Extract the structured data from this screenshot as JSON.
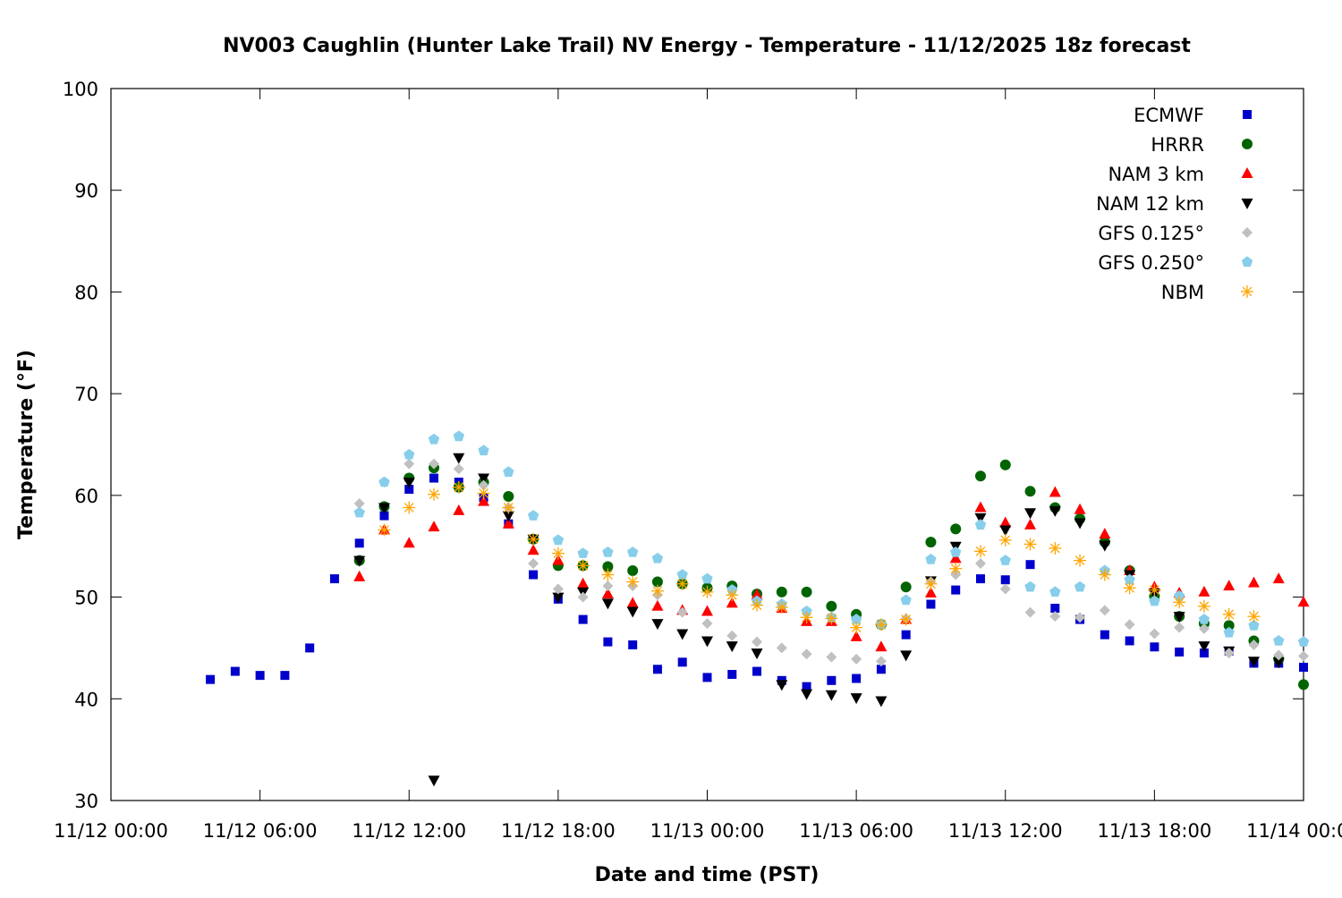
{
  "chart_data": {
    "type": "scatter",
    "title": "NV003 Caughlin (Hunter Lake Trail) NV Energy - Temperature - 11/12/2025 18z forecast",
    "xlabel": "Date and time (PST)",
    "ylabel": "Temperature (°F)",
    "xlim": [
      "11/12 00:00",
      "11/14 00:00"
    ],
    "ylim": [
      30,
      100
    ],
    "x_tick_labels": [
      "11/12 00:00",
      "11/12 06:00",
      "11/12 12:00",
      "11/12 18:00",
      "11/13 00:00",
      "11/13 06:00",
      "11/13 12:00",
      "11/13 18:00",
      "11/14 00:00"
    ],
    "y_tick_labels": [
      "30",
      "40",
      "50",
      "60",
      "70",
      "80",
      "90",
      "100"
    ],
    "grid": false,
    "legend_position": "top-right",
    "x": [
      "11/12 04:00",
      "11/12 05:00",
      "11/12 06:00",
      "11/12 07:00",
      "11/12 08:00",
      "11/12 09:00",
      "11/12 10:00",
      "11/12 11:00",
      "11/12 12:00",
      "11/12 13:00",
      "11/12 14:00",
      "11/12 15:00",
      "11/12 16:00",
      "11/12 17:00",
      "11/12 18:00",
      "11/12 19:00",
      "11/12 20:00",
      "11/12 21:00",
      "11/12 22:00",
      "11/12 23:00",
      "11/13 00:00",
      "11/13 01:00",
      "11/13 02:00",
      "11/13 03:00",
      "11/13 04:00",
      "11/13 05:00",
      "11/13 06:00",
      "11/13 07:00",
      "11/13 08:00",
      "11/13 09:00",
      "11/13 10:00",
      "11/13 11:00",
      "11/13 12:00",
      "11/13 13:00",
      "11/13 14:00",
      "11/13 15:00",
      "11/13 16:00",
      "11/13 17:00",
      "11/13 18:00",
      "11/13 19:00",
      "11/13 20:00",
      "11/13 21:00",
      "11/13 22:00",
      "11/13 23:00",
      "11/14 00:00"
    ],
    "series": [
      {
        "name": "ECMWF",
        "marker": "square",
        "color": "#0000cc",
        "values": [
          41.9,
          42.7,
          42.3,
          42.3,
          45.0,
          51.8,
          55.3,
          58.0,
          60.6,
          61.7,
          61.3,
          59.8,
          57.2,
          52.2,
          49.8,
          47.8,
          45.6,
          45.3,
          42.9,
          43.6,
          42.1,
          42.4,
          42.7,
          41.8,
          41.2,
          41.8,
          42.0,
          42.9,
          46.3,
          49.3,
          50.7,
          51.8,
          51.7,
          53.2,
          48.9,
          47.8,
          46.3,
          45.7,
          45.1,
          44.6,
          44.5,
          44.7,
          43.5,
          43.5,
          43.1
        ]
      },
      {
        "name": "HRRR",
        "marker": "circle",
        "color": "#006400",
        "values": [
          null,
          null,
          null,
          null,
          null,
          null,
          53.6,
          58.9,
          61.7,
          62.7,
          60.8,
          61.3,
          59.9,
          55.7,
          53.1,
          53.1,
          53.0,
          52.6,
          51.5,
          51.3,
          50.9,
          51.1,
          50.3,
          50.5,
          50.5,
          49.1,
          48.3,
          47.3,
          51.0,
          55.4,
          56.7,
          61.9,
          63.0,
          60.4,
          58.8,
          57.7,
          55.4,
          52.6,
          50.1,
          48.1,
          47.4,
          47.2,
          45.7,
          43.9,
          41.4
        ]
      },
      {
        "name": "NAM 3 km",
        "marker": "triangle-up",
        "color": "#ff0000",
        "values": [
          null,
          null,
          null,
          null,
          null,
          null,
          52.0,
          56.6,
          55.3,
          56.9,
          58.5,
          59.4,
          57.2,
          54.6,
          53.6,
          51.3,
          50.3,
          49.4,
          49.1,
          48.7,
          48.6,
          49.4,
          50.2,
          48.9,
          47.6,
          47.6,
          46.1,
          45.1,
          47.8,
          50.4,
          53.8,
          58.8,
          57.3,
          57.1,
          60.3,
          58.6,
          56.2,
          52.6,
          51.0,
          50.4,
          50.5,
          51.1,
          51.4,
          51.8,
          49.5
        ]
      },
      {
        "name": "NAM 12 km",
        "marker": "triangle-down",
        "color": "#000000",
        "values": [
          null,
          null,
          null,
          null,
          null,
          null,
          53.6,
          58.8,
          61.3,
          32.0,
          63.7,
          61.7,
          58.0,
          55.7,
          50.0,
          50.5,
          49.4,
          48.6,
          47.4,
          46.4,
          45.7,
          45.2,
          44.5,
          41.4,
          40.5,
          40.4,
          40.1,
          39.8,
          44.3,
          51.6,
          55.0,
          57.8,
          56.6,
          58.3,
          58.5,
          57.3,
          55.1,
          52.2,
          50.4,
          48.1,
          45.2,
          44.7,
          43.7,
          43.6,
          null
        ]
      },
      {
        "name": "GFS 0.125°",
        "marker": "diamond",
        "color": "#c0c0c0",
        "values": [
          null,
          null,
          null,
          null,
          null,
          null,
          59.2,
          61.3,
          63.1,
          63.1,
          62.6,
          61.0,
          58.8,
          53.3,
          50.8,
          50.0,
          51.1,
          51.1,
          50.2,
          48.5,
          47.4,
          46.2,
          45.6,
          45.0,
          44.4,
          44.1,
          43.9,
          43.7,
          47.9,
          51.5,
          52.2,
          53.3,
          50.8,
          48.5,
          48.1,
          48.0,
          48.7,
          47.3,
          46.4,
          47.0,
          46.9,
          44.5,
          45.3,
          44.3,
          44.2
        ]
      },
      {
        "name": "GFS 0.250°",
        "marker": "pentagon",
        "color": "#87ceeb",
        "values": [
          null,
          null,
          null,
          null,
          null,
          null,
          58.3,
          61.3,
          64.0,
          65.5,
          65.8,
          64.4,
          62.3,
          58.0,
          55.6,
          54.3,
          54.4,
          54.4,
          53.8,
          52.2,
          51.8,
          50.7,
          49.6,
          49.3,
          48.6,
          48.0,
          47.8,
          47.3,
          49.7,
          53.7,
          54.4,
          57.1,
          53.6,
          51.0,
          50.5,
          51.0,
          52.6,
          51.7,
          49.6,
          50.1,
          47.8,
          46.5,
          47.2,
          45.7,
          45.6
        ]
      },
      {
        "name": "NBM",
        "marker": "asterisk",
        "color": "#ffa500",
        "values": [
          null,
          null,
          null,
          null,
          null,
          null,
          null,
          56.6,
          58.8,
          60.1,
          60.8,
          60.2,
          58.8,
          55.7,
          54.3,
          53.1,
          52.2,
          51.5,
          50.6,
          51.3,
          50.5,
          50.2,
          49.2,
          49.0,
          48.0,
          47.9,
          47.0,
          47.3,
          47.8,
          51.3,
          52.8,
          54.5,
          55.6,
          55.2,
          54.8,
          53.6,
          52.2,
          50.9,
          50.7,
          49.5,
          49.1,
          48.3,
          48.1,
          null,
          null
        ]
      }
    ]
  }
}
